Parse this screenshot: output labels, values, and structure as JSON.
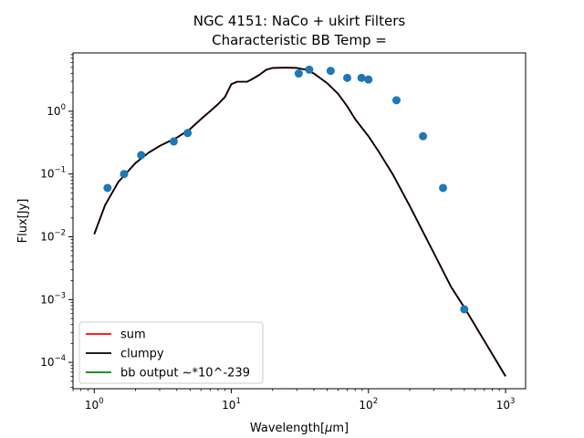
{
  "chart_data": {
    "type": "line",
    "title": "NGC 4151: NaCo + ukirt Filters",
    "subtitle": "Characteristic BB Temp =",
    "xlabel_prefix": "Wavelength[",
    "xlabel_mu": "μ",
    "xlabel_suffix": "m]",
    "ylabel": "Flux[Jy]",
    "xscale": "log",
    "yscale": "log",
    "xlim": [
      0.7,
      1400
    ],
    "ylim": [
      3.8e-05,
      8.5
    ],
    "grid": false,
    "legend_position": "lower-left",
    "x_ticks": [
      {
        "value": 1,
        "base": "10",
        "exp": "0"
      },
      {
        "value": 10,
        "base": "10",
        "exp": "1"
      },
      {
        "value": 100,
        "base": "10",
        "exp": "2"
      },
      {
        "value": 1000,
        "base": "10",
        "exp": "3"
      }
    ],
    "y_ticks": [
      {
        "value": 0.0001,
        "base": "10",
        "exp": "−4"
      },
      {
        "value": 0.001,
        "base": "10",
        "exp": "−3"
      },
      {
        "value": 0.01,
        "base": "10",
        "exp": "−2"
      },
      {
        "value": 0.1,
        "base": "10",
        "exp": "−1"
      },
      {
        "value": 1,
        "base": "10",
        "exp": "0"
      }
    ],
    "series": [
      {
        "name": "sum",
        "kind": "line",
        "color": "#ff0000",
        "points": [
          [
            1.0,
            0.011
          ],
          [
            1.2,
            0.032
          ],
          [
            1.5,
            0.075
          ],
          [
            2.0,
            0.15
          ],
          [
            2.5,
            0.22
          ],
          [
            3.0,
            0.28
          ],
          [
            4.0,
            0.38
          ],
          [
            5.0,
            0.52
          ],
          [
            6.0,
            0.75
          ],
          [
            7.0,
            1.0
          ],
          [
            8.0,
            1.3
          ],
          [
            9.0,
            1.7
          ],
          [
            10.0,
            2.7
          ],
          [
            11.0,
            2.95
          ],
          [
            12.0,
            2.95
          ],
          [
            13.0,
            2.95
          ],
          [
            14.0,
            3.2
          ],
          [
            16.0,
            3.8
          ],
          [
            18.0,
            4.6
          ],
          [
            20.0,
            4.9
          ],
          [
            25.0,
            4.95
          ],
          [
            30.0,
            4.9
          ],
          [
            35.0,
            4.6
          ],
          [
            40.0,
            4.0
          ],
          [
            50.0,
            2.8
          ],
          [
            60.0,
            1.9
          ],
          [
            70.0,
            1.2
          ],
          [
            80.0,
            0.75
          ],
          [
            100.0,
            0.4
          ],
          [
            120.0,
            0.22
          ],
          [
            150.0,
            0.1
          ],
          [
            200.0,
            0.031
          ],
          [
            300.0,
            0.0055
          ],
          [
            400.0,
            0.0016
          ],
          [
            500.0,
            0.00075
          ],
          [
            700.0,
            0.00022
          ],
          [
            1000.0,
            6e-05
          ]
        ]
      },
      {
        "name": "clumpy",
        "kind": "line",
        "color": "#000000",
        "points": [
          [
            1.0,
            0.011
          ],
          [
            1.2,
            0.032
          ],
          [
            1.5,
            0.075
          ],
          [
            2.0,
            0.15
          ],
          [
            2.5,
            0.22
          ],
          [
            3.0,
            0.28
          ],
          [
            4.0,
            0.38
          ],
          [
            5.0,
            0.52
          ],
          [
            6.0,
            0.75
          ],
          [
            7.0,
            1.0
          ],
          [
            8.0,
            1.3
          ],
          [
            9.0,
            1.7
          ],
          [
            10.0,
            2.7
          ],
          [
            11.0,
            2.95
          ],
          [
            12.0,
            2.95
          ],
          [
            13.0,
            2.95
          ],
          [
            14.0,
            3.2
          ],
          [
            16.0,
            3.8
          ],
          [
            18.0,
            4.6
          ],
          [
            20.0,
            4.9
          ],
          [
            25.0,
            4.95
          ],
          [
            30.0,
            4.9
          ],
          [
            35.0,
            4.6
          ],
          [
            40.0,
            4.0
          ],
          [
            50.0,
            2.8
          ],
          [
            60.0,
            1.9
          ],
          [
            70.0,
            1.2
          ],
          [
            80.0,
            0.75
          ],
          [
            100.0,
            0.4
          ],
          [
            120.0,
            0.22
          ],
          [
            150.0,
            0.1
          ],
          [
            200.0,
            0.031
          ],
          [
            300.0,
            0.0055
          ],
          [
            400.0,
            0.0016
          ],
          [
            500.0,
            0.00075
          ],
          [
            700.0,
            0.00022
          ],
          [
            1000.0,
            6e-05
          ]
        ]
      },
      {
        "name": "bb output ~*10^-239",
        "kind": "line",
        "color": "#008000",
        "points": []
      },
      {
        "kind": "scatter",
        "color": "#1f77b4",
        "points": [
          [
            1.25,
            0.06
          ],
          [
            1.65,
            0.1
          ],
          [
            2.2,
            0.2
          ],
          [
            3.8,
            0.33
          ],
          [
            4.8,
            0.45
          ],
          [
            31.0,
            4.0
          ],
          [
            37.0,
            4.6
          ],
          [
            53.0,
            4.4
          ],
          [
            70.0,
            3.4
          ],
          [
            89.0,
            3.4
          ],
          [
            100.0,
            3.2
          ],
          [
            160.0,
            1.5
          ],
          [
            250.0,
            0.4
          ],
          [
            350.0,
            0.06
          ],
          [
            500.0,
            0.0007
          ]
        ]
      }
    ]
  }
}
